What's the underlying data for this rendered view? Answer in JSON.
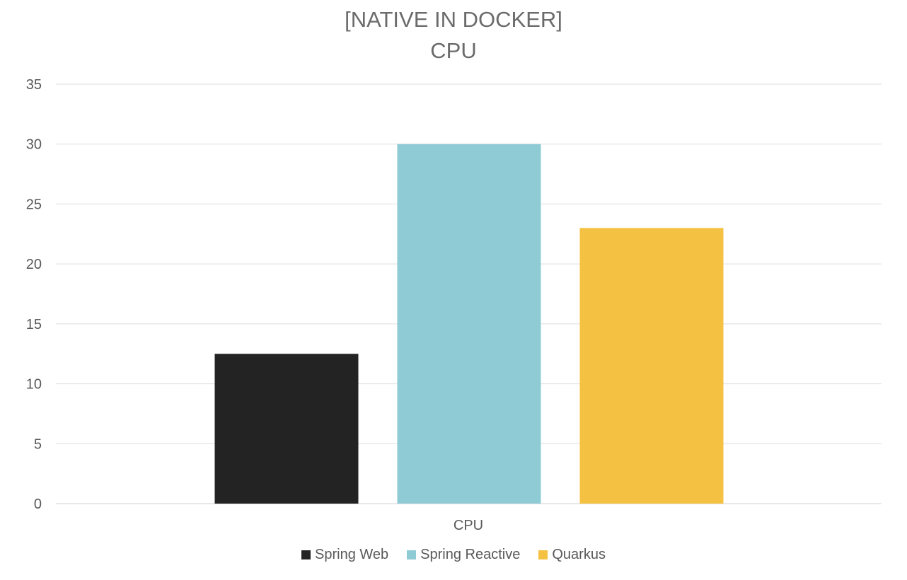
{
  "chart_data": {
    "type": "bar",
    "title_lines": [
      "[NATIVE IN DOCKER]",
      "CPU"
    ],
    "categories": [
      "CPU"
    ],
    "series": [
      {
        "name": "Spring Web",
        "values": [
          12.5
        ],
        "color": "#232323"
      },
      {
        "name": "Spring Reactive",
        "values": [
          30
        ],
        "color": "#8ecbd4"
      },
      {
        "name": "Quarkus",
        "values": [
          23
        ],
        "color": "#f4c142"
      }
    ],
    "ylim": [
      0,
      35
    ],
    "yticks": [
      0,
      5,
      10,
      15,
      20,
      25,
      30,
      35
    ],
    "grid": true,
    "legend_position": "bottom"
  }
}
